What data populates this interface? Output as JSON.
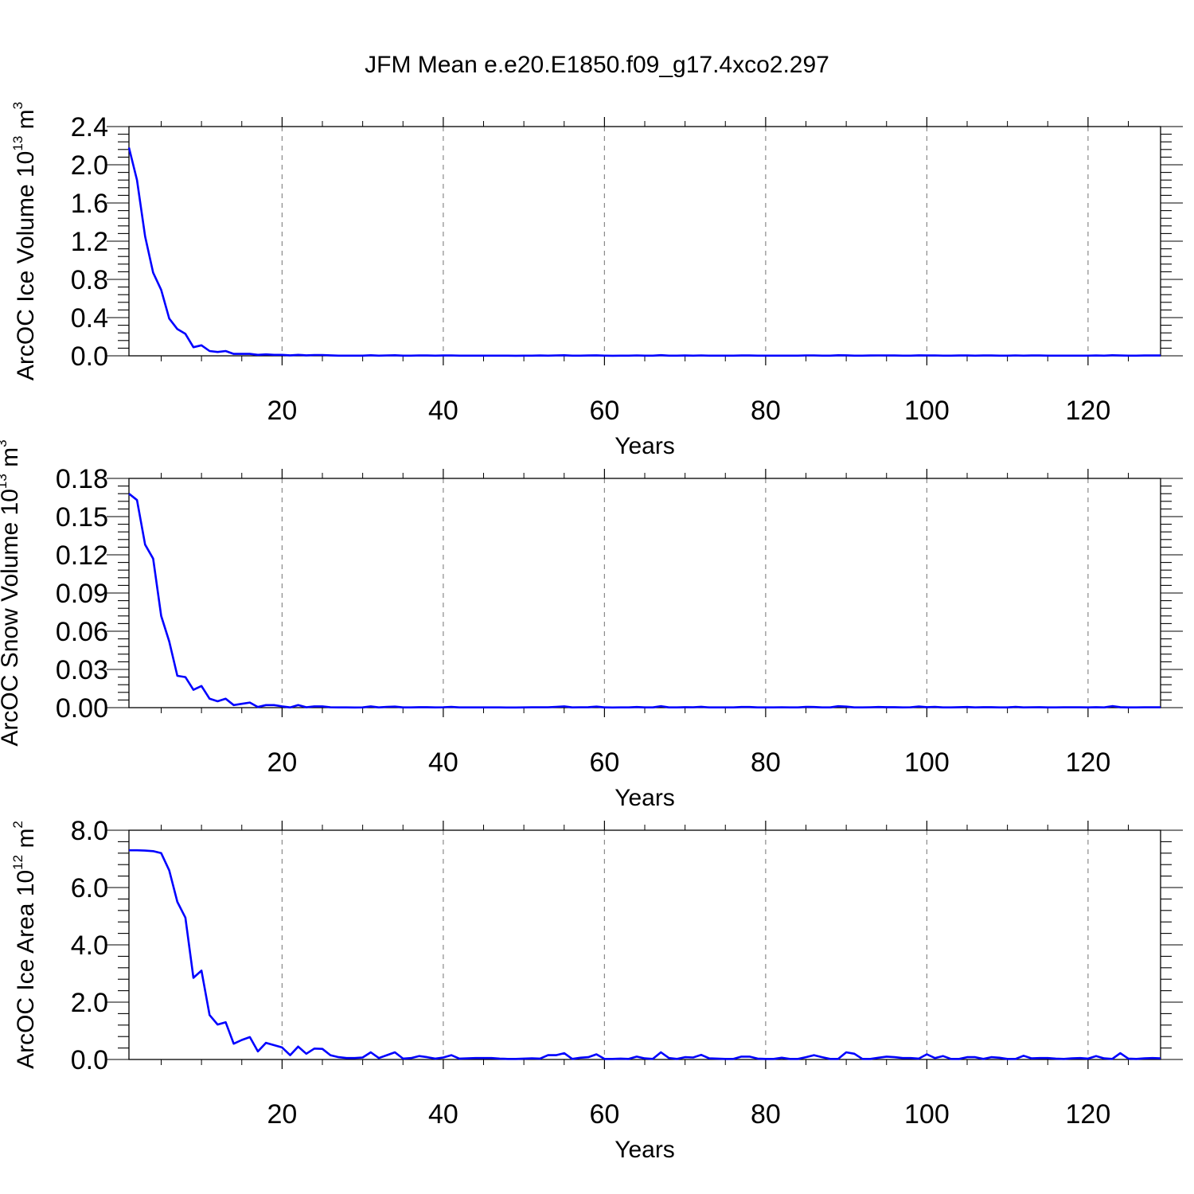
{
  "title": "JFM Mean e.e20.E1850.f09_g17.4xco2.297",
  "colors": {
    "series": "#0000ff",
    "axis": "#000000",
    "grid": "#8a8a8a"
  },
  "chart_data": [
    {
      "type": "line",
      "xlabel": "Years",
      "ylabel": {
        "text": "ArcOC Ice Volume 10",
        "exponent": "13",
        "unit": " m",
        "unit_exponent": "3"
      },
      "xlim": [
        1,
        129
      ],
      "ylim": [
        0,
        2.4
      ],
      "x_ticks": [
        20,
        40,
        60,
        80,
        100,
        120
      ],
      "y_ticks": [
        "0.0",
        "0.4",
        "0.8",
        "1.2",
        "1.6",
        "2.0",
        "2.4"
      ],
      "grid": "vertical dashed at major x ticks",
      "x": [
        1,
        2,
        3,
        4,
        5,
        6,
        7,
        8,
        9,
        10,
        11,
        12,
        13,
        14,
        15,
        16,
        17,
        18,
        19,
        20,
        21,
        22,
        23,
        24,
        25,
        26,
        27,
        28,
        29,
        30,
        31,
        32,
        33,
        34,
        35,
        36,
        37,
        38,
        39,
        40,
        41,
        42,
        43,
        44,
        45,
        46,
        47,
        48,
        49,
        50,
        51,
        52,
        53,
        54,
        55,
        56,
        57,
        58,
        59,
        60,
        61,
        62,
        63,
        64,
        65,
        66,
        67,
        68,
        69,
        70,
        71,
        72,
        73,
        74,
        75,
        76,
        77,
        78,
        79,
        80,
        81,
        82,
        83,
        84,
        85,
        86,
        87,
        88,
        89,
        90,
        91,
        92,
        93,
        94,
        95,
        96,
        97,
        98,
        99,
        100,
        101,
        102,
        103,
        104,
        105,
        106,
        107,
        108,
        109,
        110,
        111,
        112,
        113,
        114,
        115,
        116,
        117,
        118,
        119,
        120,
        121,
        122,
        123,
        124,
        125,
        126,
        127,
        128,
        129
      ],
      "values": [
        2.18,
        1.84,
        1.25,
        0.87,
        0.69,
        0.39,
        0.28,
        0.23,
        0.09,
        0.11,
        0.05,
        0.04,
        0.05,
        0.02,
        0.02,
        0.02,
        0.01,
        0.015,
        0.01,
        0.01,
        0.005,
        0.01,
        0.005,
        0.008,
        0.008,
        0.005,
        0.002,
        0.002,
        0.002,
        0.002,
        0.006,
        0.002,
        0.004,
        0.006,
        0.002,
        0.002,
        0.004,
        0.003,
        0.002,
        0.003,
        0.004,
        0.002,
        0.002,
        0.002,
        0.002,
        0.002,
        0.002,
        0.002,
        0.001,
        0.002,
        0.002,
        0.003,
        0.002,
        0.004,
        0.006,
        0.002,
        0.002,
        0.003,
        0.005,
        0.002,
        0.001,
        0.002,
        0.002,
        0.004,
        0.002,
        0.002,
        0.007,
        0.002,
        0.002,
        0.003,
        0.002,
        0.004,
        0.002,
        0.002,
        0.002,
        0.002,
        0.003,
        0.003,
        0.002,
        0.002,
        0.002,
        0.002,
        0.002,
        0.002,
        0.004,
        0.004,
        0.002,
        0.002,
        0.006,
        0.005,
        0.002,
        0.002,
        0.003,
        0.004,
        0.003,
        0.003,
        0.002,
        0.002,
        0.005,
        0.003,
        0.004,
        0.002,
        0.002,
        0.003,
        0.003,
        0.002,
        0.003,
        0.003,
        0.002,
        0.002,
        0.004,
        0.002,
        0.003,
        0.003,
        0.002,
        0.002,
        0.002,
        0.002,
        0.002,
        0.002,
        0.003,
        0.002,
        0.006,
        0.003,
        0.002,
        0.002,
        0.003,
        0.003,
        0.003
      ]
    },
    {
      "type": "line",
      "xlabel": "Years",
      "ylabel": {
        "text": "ArcOC Snow Volume 10",
        "exponent": "13",
        "unit": " m",
        "unit_exponent": "3"
      },
      "xlim": [
        1,
        129
      ],
      "ylim": [
        0,
        0.18
      ],
      "x_ticks": [
        20,
        40,
        60,
        80,
        100,
        120
      ],
      "y_ticks": [
        "0.00",
        "0.03",
        "0.06",
        "0.09",
        "0.12",
        "0.15",
        "0.18"
      ],
      "grid": "vertical dashed at major x ticks",
      "x": [
        1,
        2,
        3,
        4,
        5,
        6,
        7,
        8,
        9,
        10,
        11,
        12,
        13,
        14,
        15,
        16,
        17,
        18,
        19,
        20,
        21,
        22,
        23,
        24,
        25,
        26,
        27,
        28,
        29,
        30,
        31,
        32,
        33,
        34,
        35,
        36,
        37,
        38,
        39,
        40,
        41,
        42,
        43,
        44,
        45,
        46,
        47,
        48,
        49,
        50,
        51,
        52,
        53,
        54,
        55,
        56,
        57,
        58,
        59,
        60,
        61,
        62,
        63,
        64,
        65,
        66,
        67,
        68,
        69,
        70,
        71,
        72,
        73,
        74,
        75,
        76,
        77,
        78,
        79,
        80,
        81,
        82,
        83,
        84,
        85,
        86,
        87,
        88,
        89,
        90,
        91,
        92,
        93,
        94,
        95,
        96,
        97,
        98,
        99,
        100,
        101,
        102,
        103,
        104,
        105,
        106,
        107,
        108,
        109,
        110,
        111,
        112,
        113,
        114,
        115,
        116,
        117,
        118,
        119,
        120,
        121,
        122,
        123,
        124,
        125,
        126,
        127,
        128,
        129
      ],
      "values": [
        0.168,
        0.163,
        0.128,
        0.117,
        0.072,
        0.052,
        0.025,
        0.024,
        0.014,
        0.017,
        0.007,
        0.005,
        0.007,
        0.002,
        0.003,
        0.004,
        0.0005,
        0.002,
        0.002,
        0.001,
        0.0002,
        0.002,
        0.0003,
        0.001,
        0.001,
        0.0003,
        0.0002,
        0.0002,
        0.0001,
        0.0002,
        0.001,
        0.0002,
        0.0006,
        0.0008,
        0.0002,
        0.0002,
        0.0004,
        0.0004,
        0.0002,
        0.0003,
        0.0006,
        0.0002,
        0.0002,
        0.0002,
        0.0002,
        0.0002,
        0.0002,
        0.0001,
        0.0001,
        0.0002,
        0.0003,
        0.0003,
        0.0003,
        0.0006,
        0.001,
        0.0002,
        0.0003,
        0.0004,
        0.0008,
        0.0002,
        0.0001,
        0.0002,
        0.0002,
        0.0005,
        0.0002,
        0.0002,
        0.0012,
        0.0002,
        0.0002,
        0.0004,
        0.0003,
        0.0007,
        0.0002,
        0.0002,
        0.0002,
        0.0002,
        0.0005,
        0.0005,
        0.0002,
        0.0002,
        0.0002,
        0.0003,
        0.0002,
        0.0002,
        0.0006,
        0.0005,
        0.0002,
        0.0002,
        0.0011,
        0.0008,
        0.0002,
        0.0002,
        0.0003,
        0.0005,
        0.0004,
        0.0004,
        0.0002,
        0.0003,
        0.0009,
        0.0004,
        0.0006,
        0.0002,
        0.0002,
        0.0004,
        0.0005,
        0.0002,
        0.0004,
        0.0004,
        0.0002,
        0.0002,
        0.0006,
        0.0002,
        0.0003,
        0.0004,
        0.0002,
        0.0002,
        0.0003,
        0.0003,
        0.0003,
        0.0002,
        0.0004,
        0.0002,
        0.0012,
        0.0004,
        0.0002,
        0.0002,
        0.0003,
        0.0003,
        0.0003
      ]
    },
    {
      "type": "line",
      "xlabel": "Years",
      "ylabel": {
        "text": "ArcOC Ice Area 10",
        "exponent": "12",
        "unit": " m",
        "unit_exponent": "2"
      },
      "xlim": [
        1,
        129
      ],
      "ylim": [
        0,
        8.0
      ],
      "x_ticks": [
        20,
        40,
        60,
        80,
        100,
        120
      ],
      "y_ticks": [
        "0.0",
        "2.0",
        "4.0",
        "6.0",
        "8.0"
      ],
      "grid": "vertical dashed at major x ticks",
      "x": [
        1,
        2,
        3,
        4,
        5,
        6,
        7,
        8,
        9,
        10,
        11,
        12,
        13,
        14,
        15,
        16,
        17,
        18,
        19,
        20,
        21,
        22,
        23,
        24,
        25,
        26,
        27,
        28,
        29,
        30,
        31,
        32,
        33,
        34,
        35,
        36,
        37,
        38,
        39,
        40,
        41,
        42,
        43,
        44,
        45,
        46,
        47,
        48,
        49,
        50,
        51,
        52,
        53,
        54,
        55,
        56,
        57,
        58,
        59,
        60,
        61,
        62,
        63,
        64,
        65,
        66,
        67,
        68,
        69,
        70,
        71,
        72,
        73,
        74,
        75,
        76,
        77,
        78,
        79,
        80,
        81,
        82,
        83,
        84,
        85,
        86,
        87,
        88,
        89,
        90,
        91,
        92,
        93,
        94,
        95,
        96,
        97,
        98,
        99,
        100,
        101,
        102,
        103,
        104,
        105,
        106,
        107,
        108,
        109,
        110,
        111,
        112,
        113,
        114,
        115,
        116,
        117,
        118,
        119,
        120,
        121,
        122,
        123,
        124,
        125,
        126,
        127,
        128,
        129
      ],
      "values": [
        7.3,
        7.3,
        7.29,
        7.27,
        7.2,
        6.6,
        5.5,
        4.95,
        2.85,
        3.1,
        1.55,
        1.22,
        1.3,
        0.55,
        0.68,
        0.78,
        0.28,
        0.58,
        0.5,
        0.42,
        0.15,
        0.45,
        0.2,
        0.38,
        0.37,
        0.15,
        0.08,
        0.05,
        0.05,
        0.07,
        0.25,
        0.05,
        0.15,
        0.25,
        0.03,
        0.05,
        0.12,
        0.08,
        0.03,
        0.07,
        0.15,
        0.03,
        0.04,
        0.05,
        0.05,
        0.05,
        0.03,
        0.02,
        0.02,
        0.03,
        0.04,
        0.03,
        0.15,
        0.15,
        0.22,
        0.02,
        0.06,
        0.08,
        0.18,
        0.02,
        0.02,
        0.03,
        0.02,
        0.1,
        0.04,
        0.02,
        0.25,
        0.05,
        0.02,
        0.08,
        0.07,
        0.16,
        0.04,
        0.03,
        0.02,
        0.02,
        0.1,
        0.1,
        0.03,
        0.02,
        0.02,
        0.06,
        0.02,
        0.02,
        0.08,
        0.15,
        0.08,
        0.02,
        0.02,
        0.25,
        0.2,
        0.02,
        0.02,
        0.06,
        0.1,
        0.08,
        0.05,
        0.05,
        0.03,
        0.18,
        0.05,
        0.12,
        0.02,
        0.02,
        0.08,
        0.08,
        0.02,
        0.08,
        0.06,
        0.02,
        0.02,
        0.13,
        0.04,
        0.05,
        0.05,
        0.03,
        0.02,
        0.04,
        0.05,
        0.03,
        0.12,
        0.04,
        0.02,
        0.22,
        0.03,
        0.02,
        0.04,
        0.05,
        0.04
      ]
    }
  ]
}
